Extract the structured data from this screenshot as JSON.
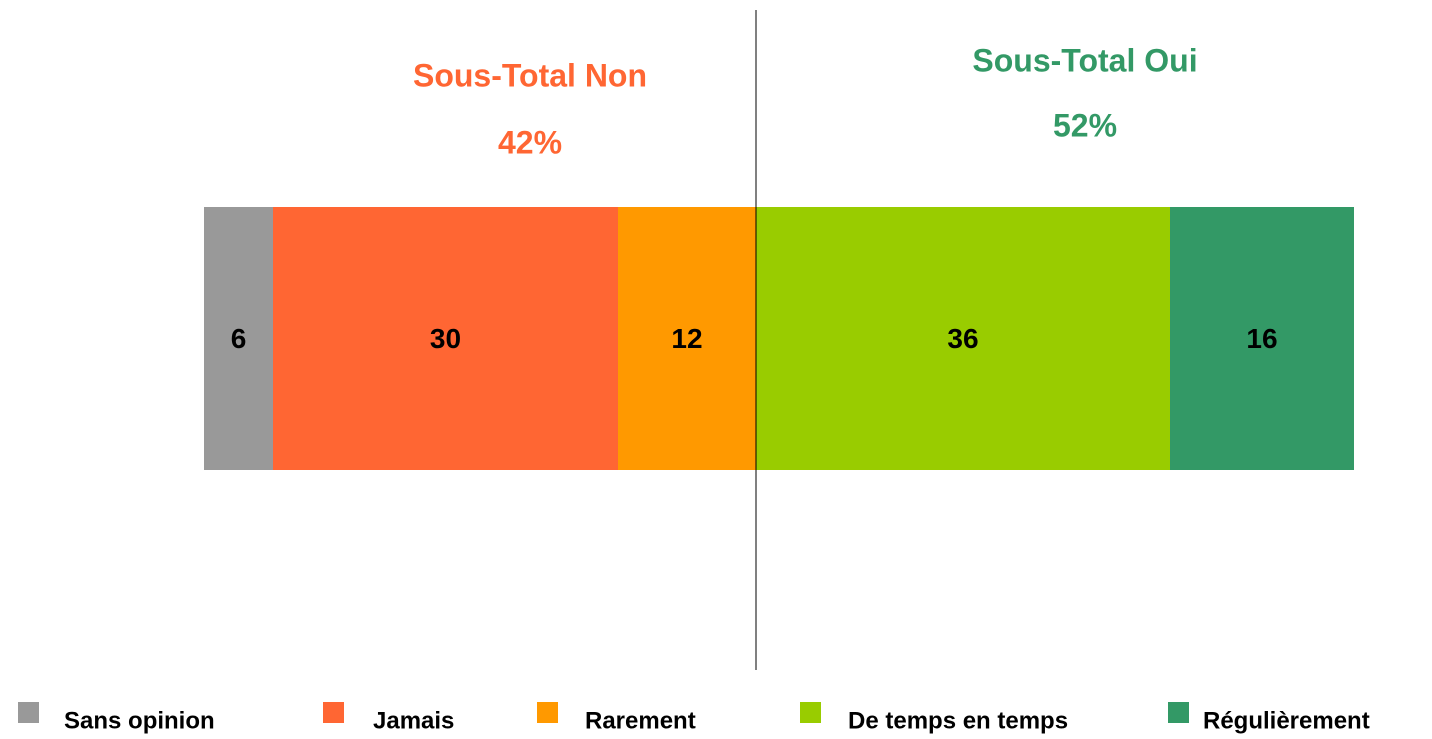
{
  "chart_data": {
    "type": "stacked-bar-horizontal",
    "xlim": [
      0,
      100
    ],
    "series": [
      {
        "name": "Sans opinion",
        "color": "#999999",
        "values": [
          6
        ]
      },
      {
        "name": "Jamais",
        "color": "#ff6633",
        "values": [
          30
        ]
      },
      {
        "name": "Rarement",
        "color": "#ff9900",
        "values": [
          12
        ]
      },
      {
        "name": "De temps en temps",
        "color": "#99cc00",
        "values": [
          36
        ]
      },
      {
        "name": "Régulièrement",
        "color": "#339966",
        "values": [
          16
        ]
      }
    ],
    "annotations": [
      {
        "text": "Sous-Total Non",
        "value": 42,
        "label": "42%",
        "color": "#ff6633"
      },
      {
        "text": "Sous-Total Oui",
        "value": 52,
        "label": "52%",
        "color": "#339966"
      }
    ]
  }
}
